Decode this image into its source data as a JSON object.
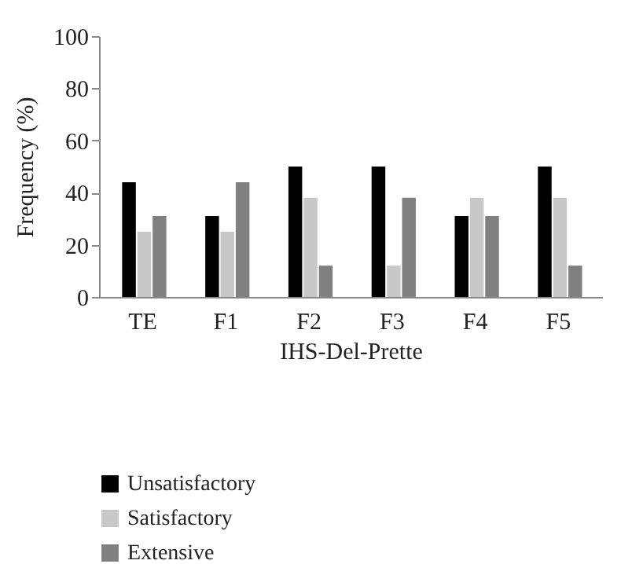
{
  "chart_data": {
    "type": "bar",
    "xlabel": "IHS-Del-Prette",
    "ylabel": "Frequency (%)",
    "categories": [
      "TE",
      "F1",
      "F2",
      "F3",
      "F4",
      "F5"
    ],
    "series": [
      {
        "name": "Unsatisfactory",
        "color": "#000000",
        "values": [
          44,
          31,
          50,
          50,
          31,
          50
        ]
      },
      {
        "name": "Satisfactory",
        "color": "#c8c8c8",
        "values": [
          25,
          25,
          38,
          12,
          38,
          38
        ]
      },
      {
        "name": "Extensive",
        "color": "#808080",
        "values": [
          31,
          44,
          12,
          38,
          31,
          12
        ]
      }
    ],
    "ylim": [
      0,
      100
    ],
    "yticks": [
      0,
      20,
      40,
      60,
      80,
      100
    ],
    "legend": "bottom"
  }
}
